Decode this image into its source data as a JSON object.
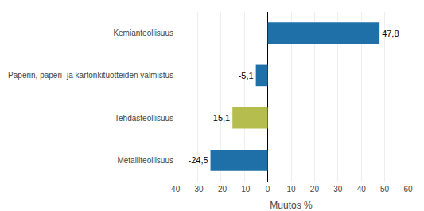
{
  "chart_data": {
    "type": "bar",
    "orientation": "horizontal",
    "categories": [
      "Metalliteollisuus",
      "Tehdasteollisuus",
      "Paperin, paperi- ja kartonkituotteiden valmistus",
      "Kemianteollisuus"
    ],
    "values": [
      -24.5,
      -15.1,
      -5.1,
      47.8
    ],
    "value_labels": [
      "-24,5",
      "-15,1",
      "-5,1",
      "47,8"
    ],
    "data_labels": true,
    "colors": [
      "#1f6fa8",
      "#b5bd4e",
      "#1f6fa8",
      "#1f6fa8"
    ],
    "xlabel": "Muutos %",
    "xlim": [
      -40,
      60
    ],
    "xticks": [
      -40,
      -30,
      -20,
      -10,
      0,
      10,
      20,
      30,
      40,
      50,
      60
    ],
    "grid": true
  }
}
